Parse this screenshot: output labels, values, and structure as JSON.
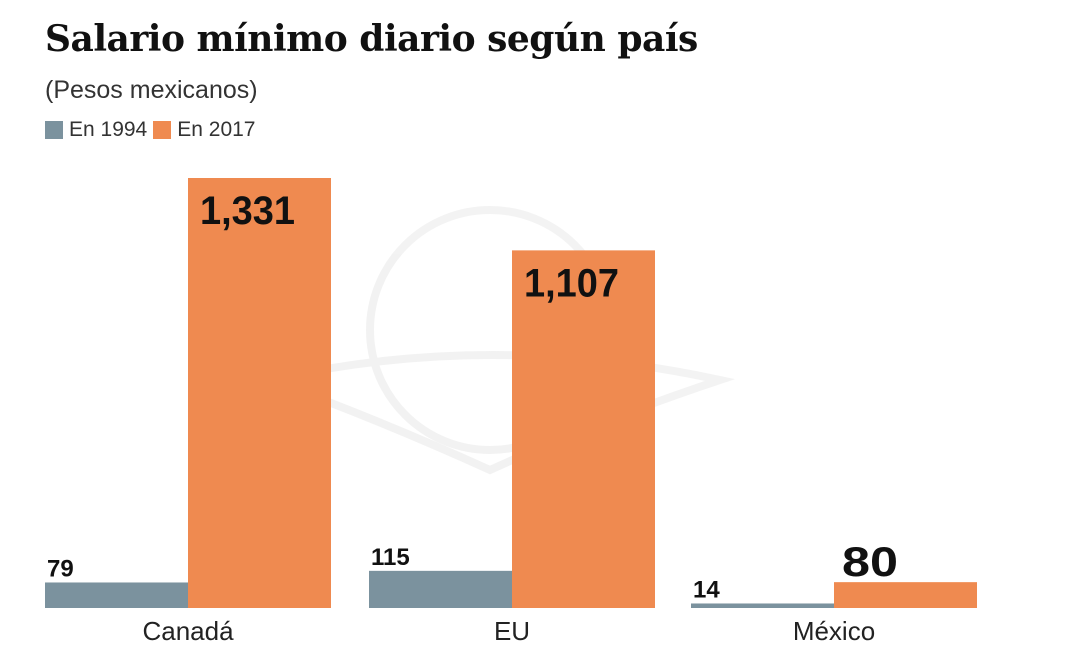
{
  "chart_data": {
    "type": "bar",
    "title": "Salario mínimo diario según país",
    "subtitle": "(Pesos mexicanos)",
    "categories": [
      "Canadá",
      "EU",
      "México"
    ],
    "series": [
      {
        "name": "En 1994",
        "color": "#7b929e",
        "values": [
          79,
          115,
          14
        ],
        "labels": [
          "79",
          "115",
          "14"
        ]
      },
      {
        "name": "En 2017",
        "color": "#ef8a50",
        "values": [
          1331,
          1107,
          80
        ],
        "labels": [
          "1,331",
          "1,107",
          "80"
        ]
      }
    ],
    "ylim": [
      0,
      1331
    ],
    "grid": false,
    "legend": "top-left"
  }
}
